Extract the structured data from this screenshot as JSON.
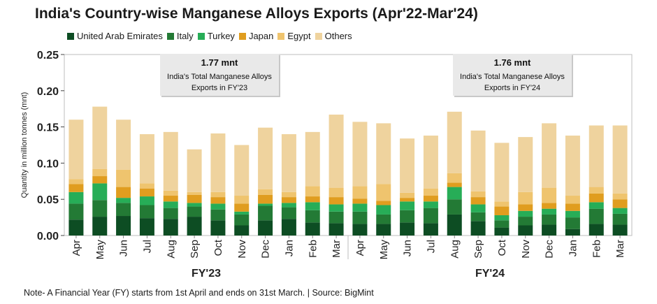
{
  "title": "India's Country-wise Manganese Alloys Exports (Apr'22-Mar'24)",
  "note": "Note- A Financial Year (FY) starts from 1st April and ends on 31st March. | Source: BigMint",
  "colors": {
    "United Arab Emirates": "#0d4d23",
    "Italy": "#237a35",
    "Turkey": "#27ad57",
    "Japan": "#e09d1f",
    "Egypt": "#efc46e",
    "Others": "#efd39e"
  },
  "chart_data": {
    "type": "bar",
    "stacked": true,
    "ylabel": "Quantity in million tonnes (mnt)",
    "ylim": [
      0,
      0.25
    ],
    "yticks": [
      "0.00",
      "0.05",
      "0.10",
      "0.15",
      "0.20",
      "0.25"
    ],
    "grid": false,
    "legend_position": "top",
    "categories": [
      "Apr",
      "May",
      "Jun",
      "Jul",
      "Aug",
      "Sep",
      "Oct",
      "Nov",
      "Dec",
      "Jan",
      "Feb",
      "Mar",
      "Apr",
      "May",
      "Jun",
      "Jul",
      "Aug",
      "Sep",
      "Oct",
      "Nov",
      "Dec",
      "Jan",
      "Feb",
      "Mar"
    ],
    "groups": [
      {
        "label": "FY'23",
        "start": 0,
        "end": 11
      },
      {
        "label": "FY'24",
        "start": 12,
        "end": 23
      }
    ],
    "series": [
      {
        "name": "United Arab Emirates",
        "values": [
          0.022,
          0.026,
          0.027,
          0.024,
          0.023,
          0.026,
          0.021,
          0.014,
          0.021,
          0.023,
          0.018,
          0.017,
          0.016,
          0.016,
          0.018,
          0.017,
          0.029,
          0.02,
          0.011,
          0.014,
          0.015,
          0.009,
          0.016,
          0.015
        ]
      },
      {
        "name": "Italy",
        "values": [
          0.022,
          0.023,
          0.018,
          0.018,
          0.015,
          0.014,
          0.015,
          0.015,
          0.02,
          0.016,
          0.017,
          0.016,
          0.017,
          0.013,
          0.017,
          0.021,
          0.021,
          0.012,
          0.01,
          0.012,
          0.014,
          0.016,
          0.021,
          0.015
        ]
      },
      {
        "name": "Turkey",
        "values": [
          0.016,
          0.023,
          0.007,
          0.012,
          0.009,
          0.005,
          0.008,
          0.004,
          0.003,
          0.006,
          0.011,
          0.01,
          0.011,
          0.013,
          0.012,
          0.009,
          0.017,
          0.011,
          0.007,
          0.008,
          0.008,
          0.009,
          0.009,
          0.008
        ]
      },
      {
        "name": "Japan",
        "values": [
          0.011,
          0.01,
          0.015,
          0.011,
          0.008,
          0.011,
          0.009,
          0.011,
          0.012,
          0.008,
          0.008,
          0.01,
          0.007,
          0.006,
          0.005,
          0.008,
          0.006,
          0.01,
          0.012,
          0.009,
          0.008,
          0.01,
          0.012,
          0.012
        ]
      },
      {
        "name": "Egypt",
        "values": [
          0.007,
          0.01,
          0.024,
          0.007,
          0.007,
          0.004,
          0.007,
          0.011,
          0.008,
          0.007,
          0.014,
          0.013,
          0.017,
          0.023,
          0.007,
          0.01,
          0.013,
          0.008,
          0.007,
          0.017,
          0.021,
          0.011,
          0.009,
          0.008
        ]
      },
      {
        "name": "Others",
        "values": [
          0.082,
          0.086,
          0.069,
          0.068,
          0.081,
          0.059,
          0.081,
          0.07,
          0.085,
          0.08,
          0.075,
          0.101,
          0.089,
          0.084,
          0.075,
          0.073,
          0.085,
          0.084,
          0.081,
          0.076,
          0.089,
          0.083,
          0.085,
          0.094
        ]
      }
    ],
    "annotations": [
      {
        "value": "1.77 mnt",
        "label": "India's Total Manganese Alloys Exports in FY'23"
      },
      {
        "value": "1.76 mnt",
        "label": "India's Total Manganese Alloys Exports in FY'24"
      }
    ]
  }
}
